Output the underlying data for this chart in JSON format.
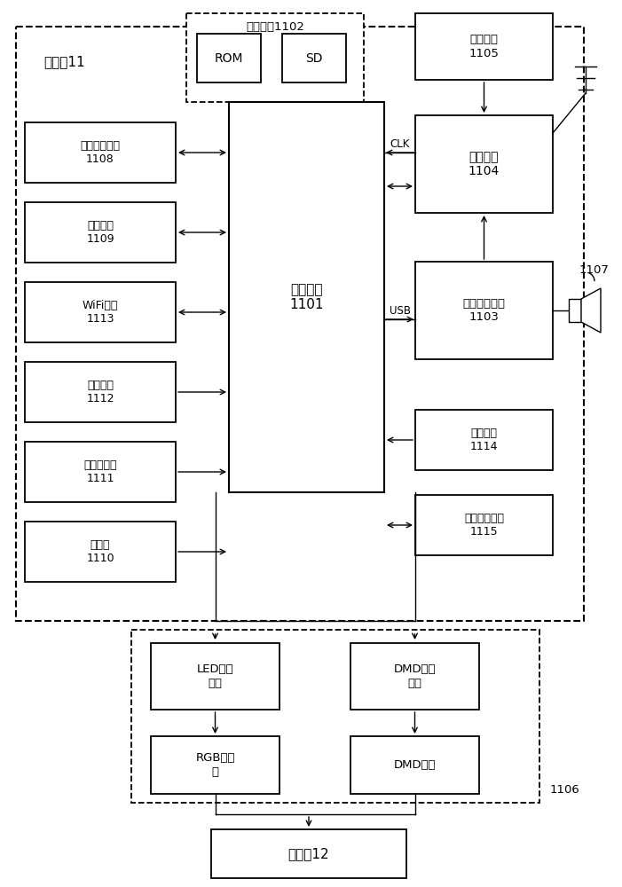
{
  "fig_width": 7.01,
  "fig_height": 10.0,
  "proj_label": "投影仪11",
  "storage_label": "存储单元1102",
  "rom_label": "ROM",
  "sd_label": "SD",
  "clock_label": "时钟电路\n1105",
  "rf_label": "射频模块\n1104",
  "power_label": "电源管理单元\n1103",
  "main_label": "主控单元\n1101",
  "wifi_mod_label": "无线网络模块\n1108",
  "bt_label": "蓝牙模块\n1109",
  "wifi_label": "WiFi模块\n1113",
  "loc_label": "定位模块\n1112",
  "ir_label": "红外传感器\n1111",
  "cam_label": "摄像头\n1110",
  "btn_label": "按键单元\n1114",
  "serial_label": "串行通信接口\n1115",
  "led_drv_label": "LED驱动\n电路",
  "dmd_drv_label": "DMD驱动\n电路",
  "rgb_label": "RGB三色\n灯",
  "dmd_chip_label": "DMD芯片",
  "label_1106": "1106",
  "label_1107": "1107",
  "screen_label": "投影幕12",
  "clk_label": "CLK",
  "usb_label": "USB"
}
